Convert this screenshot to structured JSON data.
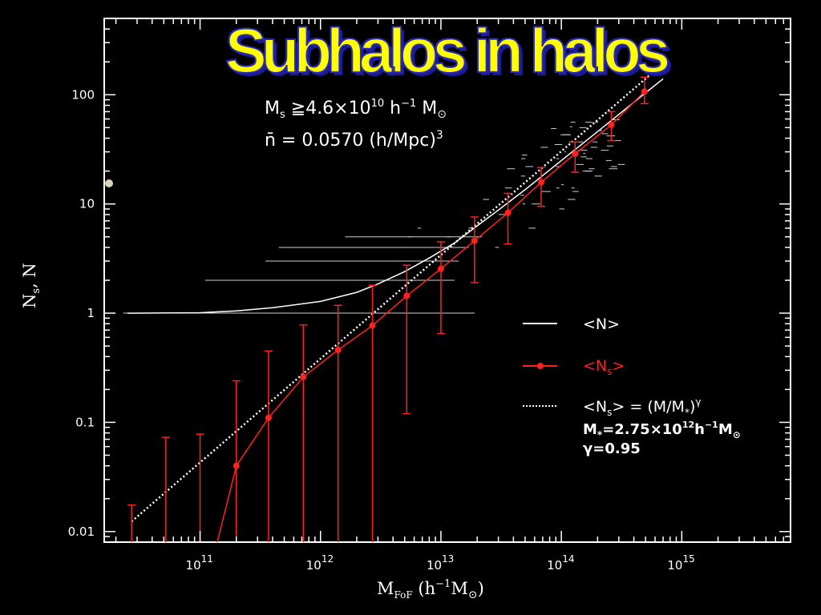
{
  "title": "Subhalos in halos",
  "annotation": {
    "ms_threshold": "M_s ≧4.6×10^10 h^-1 M_⊙",
    "density": "n̄ = 0.0570 (h/Mpc)^3"
  },
  "colors": {
    "background": "#000000",
    "title_fill": "#ffff00",
    "title_outline": "#2a2ab8",
    "ns_series": "#ff2020",
    "axes": "#ffffff"
  },
  "chart_data": {
    "type": "line",
    "title": "Subhalos in halos",
    "xlabel": "M_FoF (h^-1 M_⊙)",
    "ylabel": "N_s, N",
    "xscale": "log",
    "yscale": "log",
    "xlim": [
      16000000000.0,
      8000000000000000.0
    ],
    "ylim": [
      0.008,
      500
    ],
    "x_ticks": [
      {
        "value": 100000000000.0,
        "label": "10^11"
      },
      {
        "value": 1000000000000.0,
        "label": "10^12"
      },
      {
        "value": 10000000000000.0,
        "label": "10^13"
      },
      {
        "value": 100000000000000.0,
        "label": "10^14"
      },
      {
        "value": 1000000000000000.0,
        "label": "10^15"
      }
    ],
    "y_ticks": [
      {
        "value": 0.01,
        "label": "0.01"
      },
      {
        "value": 0.1,
        "label": "0.1"
      },
      {
        "value": 1,
        "label": "1"
      },
      {
        "value": 10,
        "label": "10"
      },
      {
        "value": 100,
        "label": "100"
      }
    ],
    "legend_position": "bottom-right",
    "series": [
      {
        "name": "<N>",
        "style": "solid-white",
        "x": [
          25000000000.0,
          100000000000.0,
          200000000000.0,
          400000000000.0,
          1000000000000.0,
          2000000000000.0,
          3000000000000.0,
          5000000000000.0,
          8000000000000.0,
          13000000000000.0,
          20000000000000.0,
          30000000000000.0,
          50000000000000.0,
          100000000000000.0,
          200000000000000.0,
          300000000000000.0,
          500000000000000.0,
          700000000000000.0
        ],
        "y": [
          1.0,
          1.01,
          1.05,
          1.12,
          1.28,
          1.55,
          1.85,
          2.4,
          3.2,
          4.4,
          6.3,
          8.8,
          13.5,
          25,
          46,
          66,
          104,
          140
        ]
      },
      {
        "name": "<N_s>",
        "style": "red-points-errorbars",
        "x": [
          130000000000.0,
          200000000000.0,
          370000000000.0,
          720000000000.0,
          1400000000000.0,
          2700000000000.0,
          5200000000000.0,
          10000000000000.0,
          19000000000000.0,
          36000000000000.0,
          68000000000000.0,
          130000000000000.0,
          260000000000000.0,
          490000000000000.0
        ],
        "y": [
          0.006,
          0.04,
          0.11,
          0.26,
          0.46,
          0.77,
          1.44,
          2.55,
          4.6,
          8.3,
          15.8,
          28.8,
          53,
          107
        ],
        "y_err_low": [
          null,
          0.008,
          0.008,
          0.008,
          0.008,
          0.008,
          0.12,
          0.65,
          1.9,
          4.3,
          9.5,
          19.5,
          38,
          83
        ],
        "y_err_high": [
          null,
          0.24,
          0.45,
          0.78,
          1.18,
          1.8,
          2.75,
          4.5,
          7.6,
          12.5,
          21.5,
          37,
          70,
          145
        ],
        "extra_errorbars": [
          {
            "x": 27000000000.0,
            "high": 0.0175
          },
          {
            "x": 52000000000.0,
            "high": 0.073
          },
          {
            "x": 100000000000.0,
            "high": 0.078
          }
        ]
      },
      {
        "name": "<N_s> = (M/M_*)^γ",
        "style": "dotted-white",
        "M_star": 2750000000000.0,
        "gamma": 0.95,
        "x_range": [
          27000000000.0,
          750000000000000.0
        ]
      }
    ],
    "legend": [
      {
        "label": "<N>",
        "style": "solid-white"
      },
      {
        "label": "<N_s>",
        "style": "red-points-errorbars"
      },
      {
        "label": "<N_s> = (M/M_*)^γ",
        "style": "dotted-white"
      },
      {
        "label": "M_*=2.75×10^12h^-1M_⊙",
        "style": "text"
      },
      {
        "label": "γ=0.95",
        "style": "text"
      }
    ]
  }
}
